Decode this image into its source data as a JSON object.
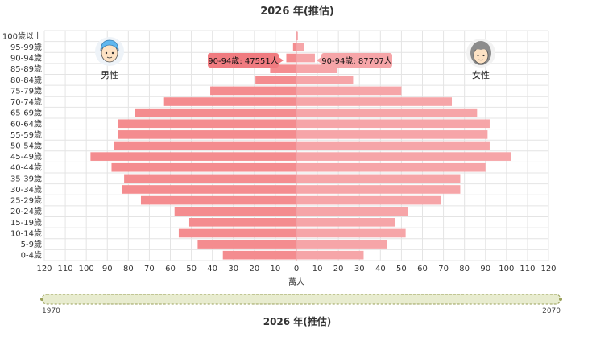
{
  "page": {
    "title": "2026 年(推估)",
    "bottom_title": "2026 年(推估)"
  },
  "legend": {
    "male_label": "男性",
    "female_label": "女性",
    "male_icon": "male-avatar-icon",
    "female_icon": "female-avatar-icon"
  },
  "tooltips": {
    "male": "90-94歲: 47551人",
    "female": "90-94歲: 87707人"
  },
  "slider": {
    "start_label": "1970",
    "end_label": "2070"
  },
  "colors": {
    "male_bar": "#f48c8f",
    "female_bar": "#f6a5a8",
    "tooltip_bg": "#f07b80",
    "slider_fill": "#e8eccf",
    "slider_border": "#9aa05a"
  },
  "chart_data": {
    "type": "bar",
    "orientation": "horizontal-butterfly",
    "xlabel": "萬人",
    "xlim": [
      -120,
      120
    ],
    "xticks": [
      "120",
      "110",
      "100",
      "90",
      "80",
      "70",
      "60",
      "50",
      "40",
      "30",
      "20",
      "10",
      "0",
      "10",
      "20",
      "30",
      "40",
      "50",
      "60",
      "70",
      "80",
      "90",
      "100",
      "110",
      "120"
    ],
    "categories": [
      "100歲以上",
      "95-99歲",
      "90-94歲",
      "85-89歲",
      "80-84歲",
      "75-79歲",
      "70-74歲",
      "65-69歲",
      "60-64歲",
      "55-59歲",
      "50-54歲",
      "45-49歲",
      "40-44歲",
      "35-39歲",
      "30-34歲",
      "25-29歲",
      "20-24歲",
      "15-19歲",
      "10-14歲",
      "5-9歲",
      "0-4歲"
    ],
    "series": [
      {
        "name": "男性",
        "values": [
          0.3,
          1.6,
          4.8,
          12.5,
          19.5,
          41,
          63,
          77,
          85,
          85,
          87,
          98,
          88,
          82,
          83,
          74,
          58,
          51,
          56,
          47,
          35
        ]
      },
      {
        "name": "女性",
        "values": [
          0.7,
          3.5,
          8.8,
          19.5,
          27,
          50,
          74,
          86,
          92,
          91,
          92,
          102,
          90,
          78,
          78,
          69,
          53,
          47,
          52,
          43,
          32
        ]
      }
    ]
  }
}
